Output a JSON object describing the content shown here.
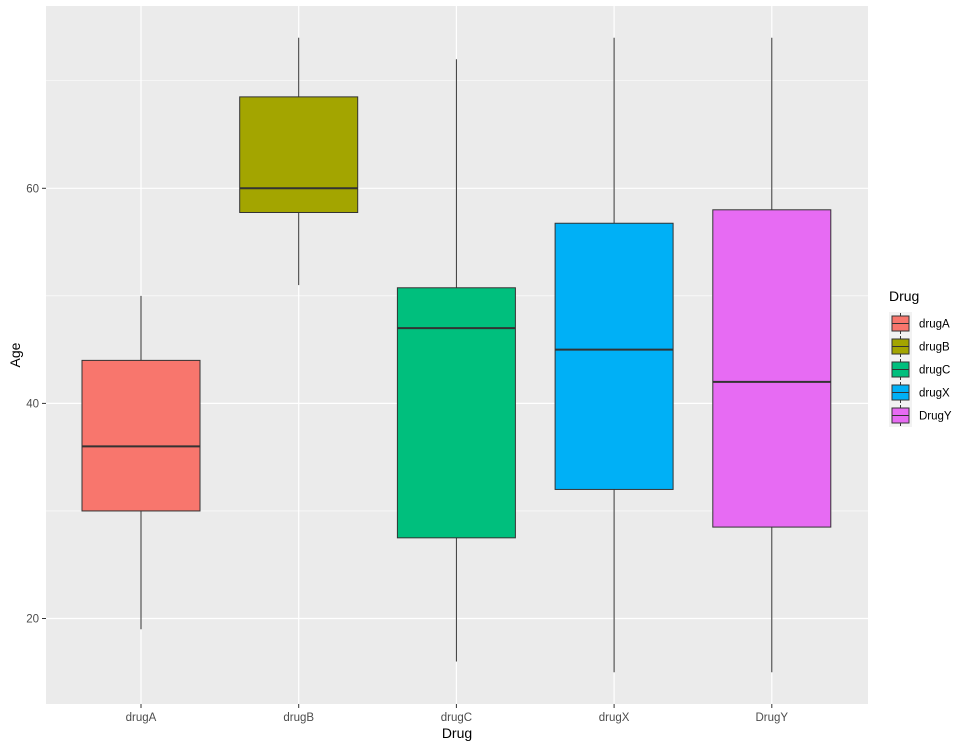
{
  "chart_data": {
    "type": "boxplot",
    "xlabel": "Drug",
    "ylabel": "Age",
    "categories": [
      "drugA",
      "drugB",
      "drugC",
      "drugX",
      "DrugY"
    ],
    "boxes": [
      {
        "category": "drugA",
        "min": 19,
        "q1": 30,
        "median": 36,
        "q3": 44,
        "max": 50,
        "color": "#F8766D"
      },
      {
        "category": "drugB",
        "min": 51,
        "q1": 57.75,
        "median": 60,
        "q3": 68.5,
        "max": 74,
        "color": "#A3A500"
      },
      {
        "category": "drugC",
        "min": 16,
        "q1": 27.5,
        "median": 47,
        "q3": 50.75,
        "max": 72,
        "color": "#00BF7D"
      },
      {
        "category": "drugX",
        "min": 15,
        "q1": 32,
        "median": 45,
        "q3": 56.75,
        "max": 74,
        "color": "#00B0F6"
      },
      {
        "category": "DrugY",
        "min": 15,
        "q1": 28.5,
        "median": 42,
        "q3": 58,
        "max": 74,
        "color": "#E76BF3"
      }
    ],
    "y_ticks": [
      20,
      40,
      60
    ],
    "ylim": [
      12.05,
      76.95
    ],
    "legend": {
      "title": "Drug",
      "position": "right",
      "entries": [
        "drugA",
        "drugB",
        "drugC",
        "drugX",
        "DrugY"
      ]
    },
    "panel_background": "#EBEBEB",
    "grid_color": "#FFFFFF",
    "grid": true
  }
}
